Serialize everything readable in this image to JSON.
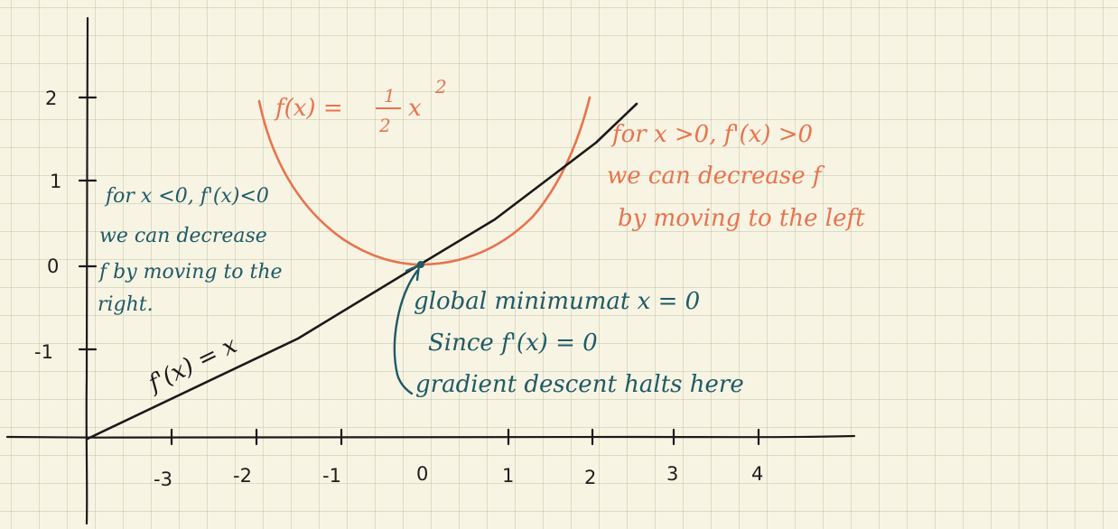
{
  "colors": {
    "ink": "#1a1a1a",
    "orange": "#e8734e",
    "teal": "#1f5a66",
    "paper": "#f8f4e3"
  },
  "axes": {
    "x_ticks": [
      "-3",
      "-2",
      "-1",
      "0",
      "1",
      "2",
      "3",
      "4"
    ],
    "y_ticks": [
      "2",
      "1",
      "0",
      "-1"
    ]
  },
  "curves": {
    "f_label": "f(x) = ",
    "f_frac_num": "1",
    "f_frac_den": "2",
    "f_frac_tail": "x",
    "f_exp": "2",
    "fprime_label": "f'(x) = x"
  },
  "notes": {
    "left": [
      "for x <0, f'(x)<0",
      "we can decrease",
      "f by moving to the",
      "right."
    ],
    "right": [
      "for x >0, f'(x) >0",
      "we can decrease f",
      "by moving to the left"
    ],
    "min": [
      "global minimumat  x = 0",
      "Since  f'(x) = 0",
      "gradient descent halts here"
    ]
  }
}
